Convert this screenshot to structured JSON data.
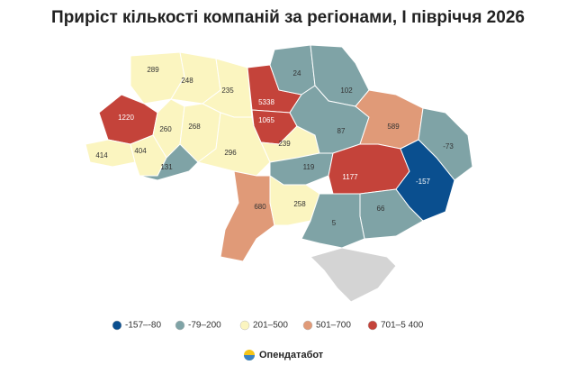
{
  "title": "Приріст кількості компаній за регіонами, І півріччя 2026",
  "regions": [
    {
      "value": 289,
      "color": "#fbf5c0"
    },
    {
      "value": 248,
      "color": "#fbf5c0"
    },
    {
      "value": 235,
      "color": "#fbf5c0"
    },
    {
      "value": 5338,
      "color": "#c4433a"
    },
    {
      "value": 1065,
      "color": "#c4433a"
    },
    {
      "value": 24,
      "color": "#7fa3a6"
    },
    {
      "value": 102,
      "color": "#7fa3a6"
    },
    {
      "value": 1220,
      "color": "#c4433a"
    },
    {
      "value": 260,
      "color": "#fbf5c0"
    },
    {
      "value": 268,
      "color": "#fbf5c0"
    },
    {
      "value": 239,
      "color": "#fbf5c0"
    },
    {
      "value": 87,
      "color": "#7fa3a6"
    },
    {
      "value": 589,
      "color": "#e09a78"
    },
    {
      "value": -73,
      "color": "#7fa3a6"
    },
    {
      "value": 414,
      "color": "#fbf5c0"
    },
    {
      "value": 404,
      "color": "#fbf5c0"
    },
    {
      "value": 296,
      "color": "#fbf5c0"
    },
    {
      "value": 131,
      "color": "#7fa3a6"
    },
    {
      "value": 119,
      "color": "#7fa3a6"
    },
    {
      "value": 1177,
      "color": "#c4433a"
    },
    {
      "value": -157,
      "color": "#0a4f8f"
    },
    {
      "value": 680,
      "color": "#e09a78"
    },
    {
      "value": 258,
      "color": "#fbf5c0"
    },
    {
      "value": 66,
      "color": "#7fa3a6"
    },
    {
      "value": 5,
      "color": "#7fa3a6"
    }
  ],
  "legend": [
    {
      "label": "-157–-80",
      "color": "#0a4f8f"
    },
    {
      "label": "-79–200",
      "color": "#7fa3a6"
    },
    {
      "label": "201–500",
      "color": "#fbf5c0"
    },
    {
      "label": "501–700",
      "color": "#e09a78"
    },
    {
      "label": "701–5 400",
      "color": "#c4433a"
    }
  ],
  "source": "Опендатабот"
}
